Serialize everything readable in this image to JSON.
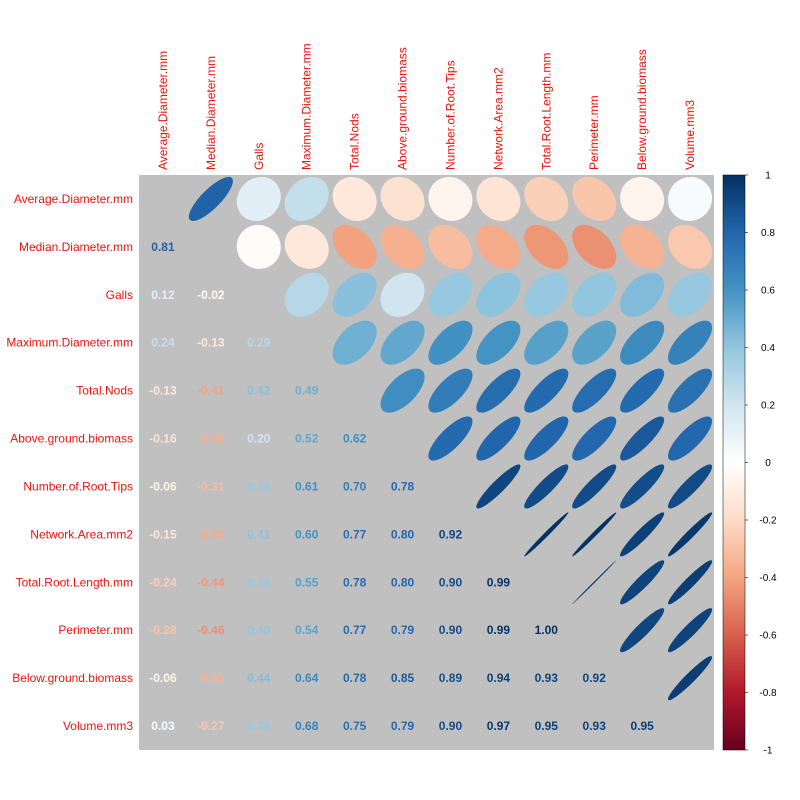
{
  "chart_data": {
    "type": "heatmap",
    "style": "correlation-matrix: ellipses above diagonal, coefficients below diagonal",
    "variables": [
      "Average.Diameter.mm",
      "Median.Diameter.mm",
      "Galls",
      "Maximum.Diameter.mm",
      "Total.Nods",
      "Above.ground.biomass",
      "Number.of.Root.Tips",
      "Network.Area.mm2",
      "Total.Root.Length.mm",
      "Perimeter.mm",
      "Below.ground.biomass",
      "Volume.mm3"
    ],
    "lower_labels": [
      [],
      [
        "0.81"
      ],
      [
        "0.12",
        "-0.02"
      ],
      [
        "0.24",
        "-0.13",
        "0.29"
      ],
      [
        "-0.13",
        "-0.41",
        "0.42",
        "0.49"
      ],
      [
        "-0.16",
        "-0.36",
        "0.20",
        "0.52",
        "0.62"
      ],
      [
        "-0.06",
        "-0.31",
        "0.38",
        "0.61",
        "0.70",
        "0.78"
      ],
      [
        "-0.15",
        "-0.38",
        "0.41",
        "0.60",
        "0.77",
        "0.80",
        "0.92"
      ],
      [
        "-0.24",
        "-0.44",
        "0.38",
        "0.55",
        "0.78",
        "0.80",
        "0.90",
        "0.99"
      ],
      [
        "-0.28",
        "-0.46",
        "0.40",
        "0.54",
        "0.77",
        "0.79",
        "0.90",
        "0.99",
        "1.00"
      ],
      [
        "-0.06",
        "-0.35",
        "0.44",
        "0.64",
        "0.78",
        "0.85",
        "0.89",
        "0.94",
        "0.93",
        "0.92"
      ],
      [
        "0.03",
        "-0.27",
        "0.38",
        "0.68",
        "0.75",
        "0.79",
        "0.90",
        "0.97",
        "0.95",
        "0.93",
        "0.95"
      ]
    ],
    "color_scale": {
      "range": [
        -1,
        1
      ],
      "ticks": [
        "1",
        "0.8",
        "0.6",
        "0.4",
        "0.2",
        "0",
        "-0.2",
        "-0.4",
        "-0.6",
        "-0.8",
        "-1"
      ],
      "colors": [
        "#67001f",
        "#b2182b",
        "#d6604d",
        "#f4a582",
        "#fddbc7",
        "#ffffff",
        "#d1e5f0",
        "#92c5de",
        "#4393c3",
        "#2166ac",
        "#053061"
      ]
    },
    "background_color": "#c0c0c0",
    "label_color": "#e8140e",
    "legend_position": "right"
  }
}
